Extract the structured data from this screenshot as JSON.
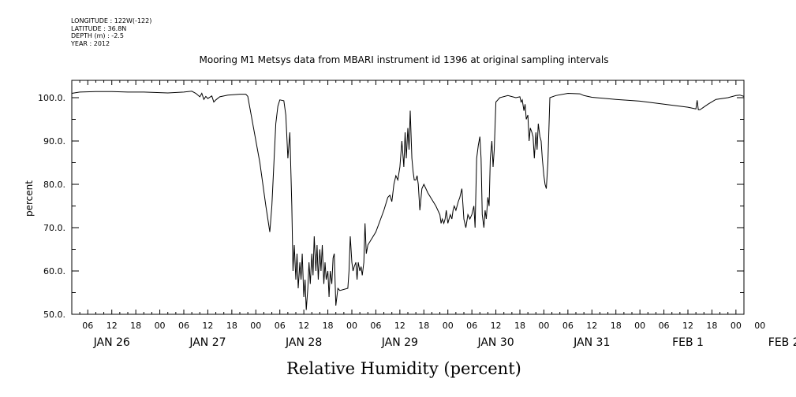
{
  "meta": {
    "longitude": "LONGITUDE : 122W(-122)",
    "latitude": "LATITUDE : 36.8N",
    "depth": "DEPTH (m) : -2.5",
    "year": "YEAR : 2012"
  },
  "chart_data": {
    "type": "line",
    "title": "Mooring M1 Metsys data from MBARI instrument id 1396 at original sampling intervals",
    "xlabel": "Relative Humidity (percent)",
    "ylabel": "percent",
    "ylim": [
      50,
      104
    ],
    "xlim_hours": [
      2,
      170
    ],
    "y_ticks": [
      50,
      60,
      70,
      80,
      90,
      100
    ],
    "hour_labels": [
      "06",
      "12",
      "18",
      "00",
      "06",
      "12",
      "18",
      "00",
      "06",
      "12",
      "18",
      "00",
      "06",
      "12",
      "18",
      "00",
      "06",
      "12",
      "18",
      "00",
      "06",
      "12",
      "18",
      "00",
      "06",
      "12",
      "18",
      "00",
      "00"
    ],
    "day_labels": [
      "JAN 26",
      "JAN 27",
      "JAN 28",
      "JAN 29",
      "JAN 30",
      "JAN 31",
      "FEB  1",
      "FEB  2"
    ],
    "grid": false,
    "series": [
      {
        "color": "#000000",
        "points": [
          [
            2,
            101
          ],
          [
            4,
            101.3
          ],
          [
            8,
            101.4
          ],
          [
            12,
            101.4
          ],
          [
            16,
            101.3
          ],
          [
            20,
            101.3
          ],
          [
            26,
            101.1
          ],
          [
            30,
            101.3
          ],
          [
            32,
            101.5
          ],
          [
            33,
            101
          ],
          [
            34,
            100.2
          ],
          [
            34.5,
            101
          ],
          [
            35,
            99.6
          ],
          [
            35.5,
            100.3
          ],
          [
            36,
            99.8
          ],
          [
            37,
            100.4
          ],
          [
            37.5,
            99
          ],
          [
            38,
            99.5
          ],
          [
            39,
            100.2
          ],
          [
            41,
            100.6
          ],
          [
            44,
            100.8
          ],
          [
            45.5,
            100.8
          ],
          [
            46,
            100.3
          ],
          [
            49,
            85
          ],
          [
            50.5,
            75
          ],
          [
            51.5,
            69
          ],
          [
            52,
            75
          ],
          [
            53,
            94
          ],
          [
            53.5,
            98
          ],
          [
            54,
            99.5
          ],
          [
            55,
            99.3
          ],
          [
            55.5,
            96
          ],
          [
            56,
            86
          ],
          [
            56.5,
            92
          ],
          [
            57,
            75
          ],
          [
            57.3,
            60
          ],
          [
            57.6,
            66
          ],
          [
            58,
            58
          ],
          [
            58.3,
            64
          ],
          [
            58.6,
            56
          ],
          [
            59,
            62
          ],
          [
            59.3,
            58
          ],
          [
            59.6,
            64
          ],
          [
            60,
            54
          ],
          [
            60.3,
            58
          ],
          [
            60.6,
            51
          ],
          [
            61,
            56
          ],
          [
            61.3,
            62
          ],
          [
            61.6,
            57
          ],
          [
            62,
            64
          ],
          [
            62.3,
            59
          ],
          [
            62.6,
            68
          ],
          [
            63,
            60
          ],
          [
            63.3,
            66
          ],
          [
            63.6,
            58
          ],
          [
            64,
            65
          ],
          [
            64.3,
            60
          ],
          [
            64.6,
            66
          ],
          [
            65,
            57
          ],
          [
            65.3,
            62
          ],
          [
            65.6,
            58
          ],
          [
            66,
            60
          ],
          [
            66.3,
            54
          ],
          [
            66.6,
            60
          ],
          [
            67,
            57
          ],
          [
            67.3,
            63
          ],
          [
            67.6,
            64
          ],
          [
            68,
            52
          ],
          [
            68.5,
            56
          ],
          [
            69,
            55.5
          ],
          [
            71,
            56
          ],
          [
            71.3,
            60
          ],
          [
            71.6,
            68
          ],
          [
            72,
            62
          ],
          [
            72.3,
            60
          ],
          [
            72.6,
            61
          ],
          [
            73,
            62
          ],
          [
            73.3,
            58
          ],
          [
            73.6,
            62
          ],
          [
            74,
            60
          ],
          [
            74.3,
            61
          ],
          [
            74.6,
            59
          ],
          [
            75,
            62
          ],
          [
            75.3,
            71
          ],
          [
            75.6,
            64
          ],
          [
            76,
            66
          ],
          [
            78,
            69
          ],
          [
            80,
            74
          ],
          [
            81,
            77
          ],
          [
            81.5,
            77.5
          ],
          [
            82,
            76
          ],
          [
            82.5,
            80
          ],
          [
            83,
            82
          ],
          [
            83.5,
            81
          ],
          [
            84,
            84
          ],
          [
            84.5,
            90
          ],
          [
            85,
            84
          ],
          [
            85.3,
            92
          ],
          [
            85.6,
            86
          ],
          [
            86,
            93
          ],
          [
            86.3,
            88
          ],
          [
            86.6,
            97
          ],
          [
            87,
            86
          ],
          [
            87.3,
            83
          ],
          [
            87.6,
            81
          ],
          [
            88,
            81
          ],
          [
            88.3,
            82
          ],
          [
            88.6,
            80
          ],
          [
            89,
            74
          ],
          [
            89.5,
            79
          ],
          [
            90,
            80
          ],
          [
            91,
            78
          ],
          [
            93,
            75
          ],
          [
            94,
            73
          ],
          [
            94.3,
            71
          ],
          [
            94.6,
            72
          ],
          [
            95,
            71
          ],
          [
            95.3,
            72
          ],
          [
            95.6,
            74
          ],
          [
            96,
            71
          ],
          [
            96.3,
            72
          ],
          [
            96.6,
            73
          ],
          [
            97,
            72
          ],
          [
            97.3,
            74
          ],
          [
            97.6,
            75
          ],
          [
            98,
            74
          ],
          [
            98.3,
            75
          ],
          [
            98.6,
            76
          ],
          [
            99,
            77
          ],
          [
            99.5,
            79
          ],
          [
            100,
            72
          ],
          [
            100.5,
            70
          ],
          [
            101,
            73
          ],
          [
            101.5,
            72
          ],
          [
            102,
            73
          ],
          [
            102.5,
            75
          ],
          [
            102.8,
            70
          ],
          [
            103.2,
            86
          ],
          [
            103.6,
            89
          ],
          [
            104,
            91
          ],
          [
            104.3,
            86
          ],
          [
            104.6,
            73
          ],
          [
            105,
            70
          ],
          [
            105.3,
            74
          ],
          [
            105.6,
            72
          ],
          [
            106,
            77
          ],
          [
            106.3,
            75
          ],
          [
            106.6,
            86
          ],
          [
            107,
            90
          ],
          [
            107.3,
            84
          ],
          [
            107.6,
            88
          ],
          [
            108,
            99
          ],
          [
            109,
            100
          ],
          [
            111,
            100.5
          ],
          [
            113,
            100
          ],
          [
            114,
            100.2
          ],
          [
            114.3,
            99
          ],
          [
            114.6,
            99.5
          ],
          [
            115,
            97
          ],
          [
            115.3,
            98.5
          ],
          [
            115.6,
            95
          ],
          [
            116,
            96
          ],
          [
            116.3,
            90
          ],
          [
            116.6,
            93
          ],
          [
            117,
            92
          ],
          [
            117.3,
            91
          ],
          [
            117.6,
            86
          ],
          [
            118,
            92
          ],
          [
            118.3,
            88
          ],
          [
            118.6,
            94
          ],
          [
            119,
            91
          ],
          [
            119.3,
            90
          ],
          [
            119.6,
            86
          ],
          [
            120,
            82
          ],
          [
            120.3,
            80
          ],
          [
            120.6,
            79
          ],
          [
            121,
            85
          ],
          [
            121.5,
            100
          ],
          [
            123,
            100.5
          ],
          [
            126,
            101
          ],
          [
            129,
            100.9
          ],
          [
            130,
            100.5
          ],
          [
            132,
            100.1
          ],
          [
            138,
            99.6
          ],
          [
            144,
            99.2
          ],
          [
            150,
            98.5
          ],
          [
            156,
            97.8
          ],
          [
            158,
            97.4
          ],
          [
            158.3,
            99.4
          ],
          [
            158.6,
            97.2
          ],
          [
            159,
            97.2
          ],
          [
            161,
            98.5
          ],
          [
            163,
            99.6
          ],
          [
            166,
            100
          ],
          [
            168,
            100.5
          ],
          [
            169,
            100.6
          ],
          [
            170,
            100.3
          ]
        ]
      }
    ]
  }
}
